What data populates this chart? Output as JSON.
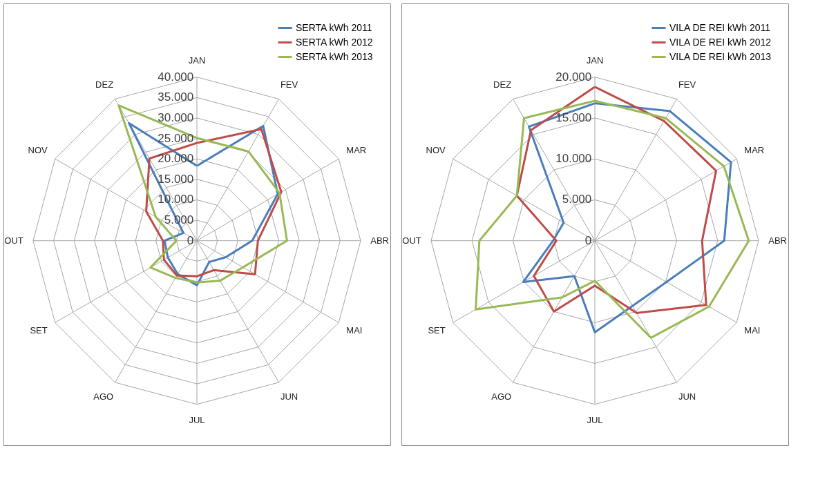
{
  "chart_data": [
    {
      "type": "radar",
      "categories": [
        "JAN",
        "FEV",
        "MAR",
        "ABR",
        "MAI",
        "JUN",
        "JUL",
        "AGO",
        "SET",
        "OUT",
        "NOV",
        "DEZ"
      ],
      "ylim": [
        0,
        40000
      ],
      "yticks": [
        0,
        {
          "value": 5000,
          "label": "5.000"
        },
        {
          "value": 10000,
          "label": "10.000"
        },
        {
          "value": 15000,
          "label": "15.000"
        },
        {
          "value": 20000,
          "label": "20.000"
        },
        {
          "value": 25000,
          "label": "25.000"
        },
        {
          "value": 30000,
          "label": "30.000"
        },
        {
          "value": 35000,
          "label": "35.000"
        },
        {
          "value": 40000,
          "label": "40.000"
        }
      ],
      "grid": true,
      "legend": "top right",
      "series": [
        {
          "name": "SERTA kWh 2011",
          "color": "#4a7ebb",
          "values": [
            18300,
            32400,
            22800,
            13500,
            8100,
            6000,
            10900,
            9400,
            8200,
            7900,
            3800,
            33200
          ]
        },
        {
          "name": "SERTA kWh 2012",
          "color": "#be4b48",
          "values": [
            23900,
            31500,
            23800,
            14900,
            16400,
            8300,
            8700,
            9800,
            9300,
            8300,
            14300,
            23200
          ]
        },
        {
          "name": "SERTA kWh 2013",
          "color": "#98b954",
          "values": [
            25100,
            25200,
            23300,
            22000,
            13000,
            11300,
            10200,
            10500,
            13100,
            5000,
            11600,
            38200
          ]
        }
      ]
    },
    {
      "type": "radar",
      "categories": [
        "JAN",
        "FEV",
        "MAR",
        "ABR",
        "MAI",
        "JUN",
        "JUL",
        "AGO",
        "SET",
        "OUT",
        "NOV",
        "DEZ"
      ],
      "ylim": [
        0,
        20000
      ],
      "yticks": [
        0,
        {
          "value": 5000,
          "label": "5.000"
        },
        {
          "value": 10000,
          "label": "10.000"
        },
        {
          "value": 15000,
          "label": "15.000"
        },
        {
          "value": 20000,
          "label": "20.000"
        }
      ],
      "grid": true,
      "legend": "top right",
      "series": [
        {
          "name": "VILA DE REI kWh 2011",
          "color": "#4a7ebb",
          "values": [
            16800,
            18300,
            19200,
            15800,
            10100,
            9200,
            11200,
            5000,
            10100,
            5100,
            4400,
            16100
          ]
        },
        {
          "name": "VILA DE REI kWh 2012",
          "color": "#be4b48",
          "values": [
            18800,
            16900,
            17100,
            13100,
            15700,
            10200,
            5500,
            10000,
            8600,
            4700,
            11000,
            15600
          ]
        },
        {
          "name": "VILA DE REI kWh 2013",
          "color": "#98b954",
          "values": [
            17100,
            17300,
            18200,
            18800,
            16100,
            13700,
            4900,
            8000,
            16800,
            14100,
            11000,
            17300
          ]
        }
      ]
    }
  ]
}
